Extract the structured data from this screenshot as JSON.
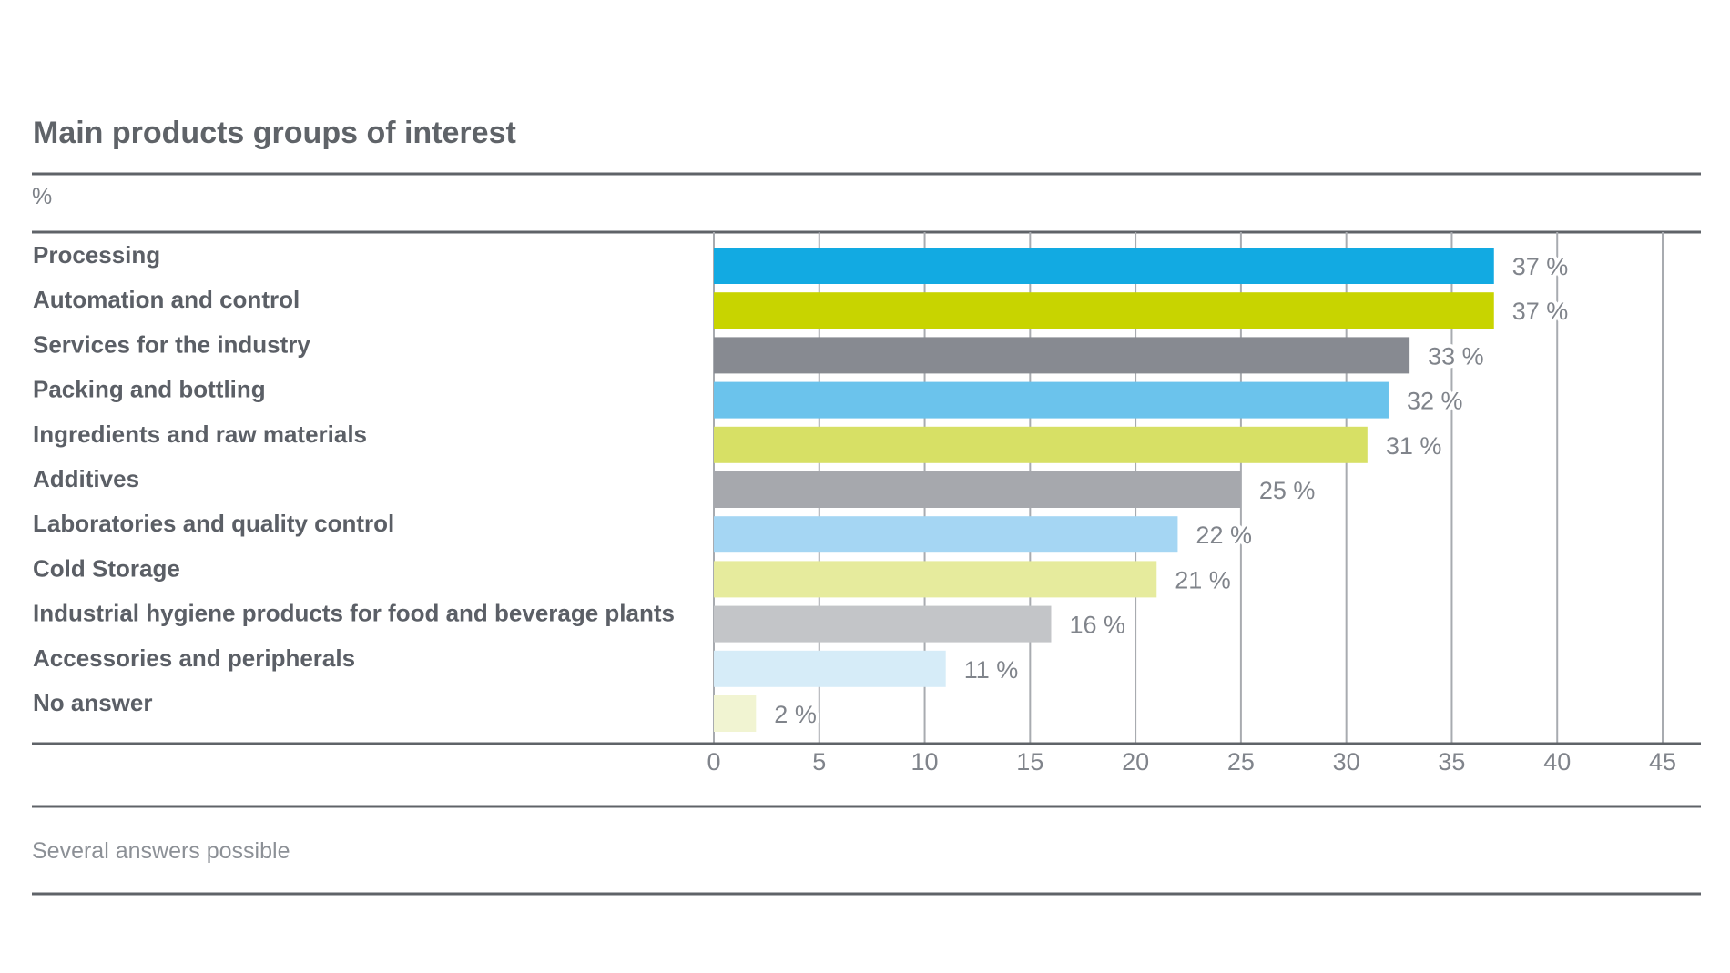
{
  "chart_data": {
    "type": "bar",
    "orientation": "horizontal",
    "title": "Main products groups of interest",
    "unit_label": "%",
    "note": "Several answers possible",
    "categories": [
      "Processing",
      "Automation and control",
      "Services for the industry",
      "Packing and bottling",
      "Ingredients and raw materials",
      "Additives",
      "Laboratories and quality control",
      "Cold Storage",
      "Industrial hygiene products for food and beverage plants",
      "Accessories and peripherals",
      "No answer"
    ],
    "values": [
      37,
      37,
      33,
      32,
      31,
      25,
      22,
      21,
      16,
      11,
      2
    ],
    "value_labels": [
      "37 %",
      "37 %",
      "33 %",
      "32 %",
      "31 %",
      "25 %",
      "22 %",
      "21 %",
      "16 %",
      "11 %",
      "2 %"
    ],
    "bar_colors": [
      "#12aae2",
      "#c8d400",
      "#878a91",
      "#6bc3ec",
      "#d7e065",
      "#a6a8ad",
      "#a5d6f3",
      "#e6eb9d",
      "#c3c5c8",
      "#d6ecf8",
      "#f1f4d2"
    ],
    "xlim": [
      0,
      45
    ],
    "xticks": [
      0,
      5,
      10,
      15,
      20,
      25,
      30,
      35,
      40,
      45
    ],
    "xtick_labels": [
      "0",
      "5",
      "10",
      "15",
      "20",
      "25",
      "30",
      "35",
      "40",
      "45"
    ],
    "grid": true,
    "legend": "none"
  },
  "colors": {
    "rule": "#5f6368",
    "grid": "#a8abb0",
    "text": "#5b5f66",
    "muted": "#80848b"
  }
}
